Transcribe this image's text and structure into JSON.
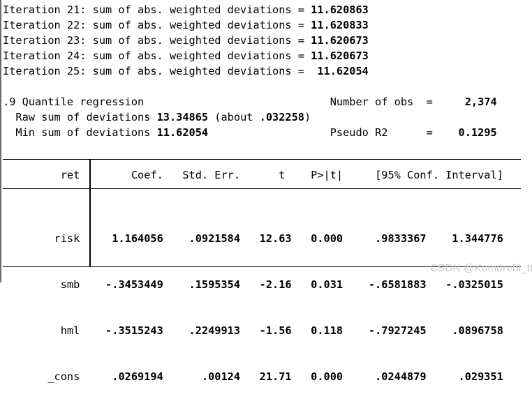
{
  "colors": {
    "background": "#ffffff",
    "text": "#000000",
    "rules": "#000000",
    "watermark_gray": "#c7c7c7"
  },
  "iterations": [
    {
      "prefix": "Iteration 21: sum of abs. weighted deviations = ",
      "value": "11.620863"
    },
    {
      "prefix": "Iteration 22: sum of abs. weighted deviations = ",
      "value": "11.620833"
    },
    {
      "prefix": "Iteration 23: sum of abs. weighted deviations = ",
      "value": "11.620673"
    },
    {
      "prefix": "Iteration 24: sum of abs. weighted deviations = ",
      "value": "11.620673"
    },
    {
      "prefix": "Iteration 25: sum of abs. weighted deviations = ",
      "value": " 11.62054"
    }
  ],
  "summary": {
    "l1_text": ".9 Quantile regression                             Number of obs  =",
    "l1_value": "     2,374",
    "l2_a": "  Raw sum of deviations ",
    "l2_v1": "13.34865",
    "l2_b": " (about ",
    "l2_v2": ".032258",
    "l2_c": ")",
    "l3_a": "  Min sum of deviations ",
    "l3_v1": "11.62054",
    "l3_b": "                   Pseudo R2      =",
    "l3_v2": "    0.1295"
  },
  "table": {
    "depvar": "ret",
    "header_label": "         ret",
    "header_cols": "        Coef.   Std. Err.      t    P>|t|     [95% Conf. Interval]",
    "rows": [
      {
        "label": "        risk",
        "values": "     1.164056    .0921584   12.63   0.000     .9833367    1.344776"
      },
      {
        "label": "         smb",
        "values": "    -.3453449    .1595354   -2.16   0.031    -.6581883   -.0325015"
      },
      {
        "label": "         hml",
        "values": "    -.3515243    .2249913   -1.56   0.118    -.7927245    .0896758"
      },
      {
        "label": "       _cons",
        "values": "     .0269194      .00124   21.71   0.000     .0244879     .029351"
      }
    ]
  },
  "watermark": {
    "text": "CSDN @Komorebi_tt"
  }
}
